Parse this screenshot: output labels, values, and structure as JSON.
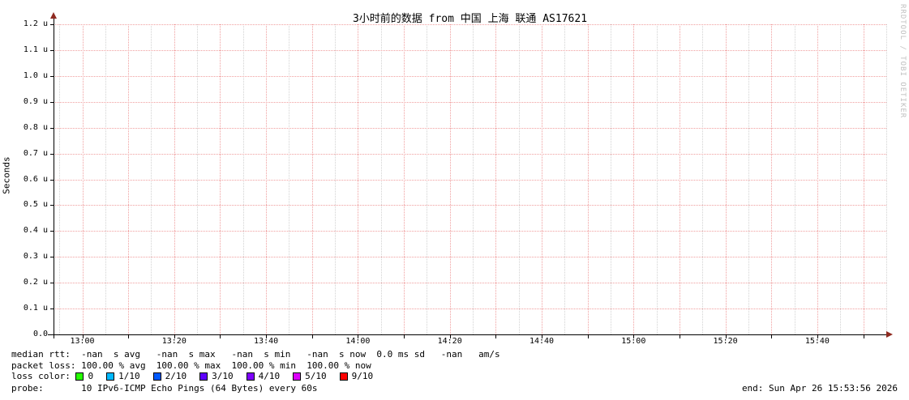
{
  "title": "3小时前的数据 from 中国 上海 联通 AS17621",
  "watermark": "RRDTOOL / TOBI OETIKER",
  "y_axis": {
    "label": "Seconds",
    "ticks": [
      "0.0",
      "0.1 u",
      "0.2 u",
      "0.3 u",
      "0.4 u",
      "0.5 u",
      "0.6 u",
      "0.7 u",
      "0.8 u",
      "0.9 u",
      "1.0 u",
      "1.1 u",
      "1.2 u"
    ]
  },
  "x_axis": {
    "ticks": [
      "13:00",
      "13:20",
      "13:40",
      "14:00",
      "14:20",
      "14:40",
      "15:00",
      "15:20",
      "15:40"
    ]
  },
  "chart_data": {
    "type": "line",
    "title": "3小时前的数据 from 中国 上海 联通 AS17621",
    "xlabel": "",
    "ylabel": "Seconds",
    "x_ticks": [
      "13:00",
      "13:20",
      "13:40",
      "14:00",
      "14:20",
      "14:40",
      "15:00",
      "15:20",
      "15:40"
    ],
    "y_ticks": [
      "0.0",
      "0.1 u",
      "0.2 u",
      "0.3 u",
      "0.4 u",
      "0.5 u",
      "0.6 u",
      "0.7 u",
      "0.8 u",
      "0.9 u",
      "1.0 u",
      "1.1 u",
      "1.2 u"
    ],
    "ylim": [
      0,
      1.2e-06
    ],
    "grid": true,
    "legend_position": "bottom",
    "series": [],
    "stats": {
      "median_rtt": {
        "avg": "-nan s",
        "max": "-nan s",
        "min": "-nan s",
        "now": "-nan s",
        "sd": "0.0 ms",
        "am_s": "-nan"
      },
      "packet_loss": {
        "avg": "100.00 %",
        "max": "100.00 %",
        "min": "100.00 %",
        "now": "100.00 %"
      }
    }
  },
  "legend": {
    "line1": "median rtt:  -nan  s avg   -nan  s max   -nan  s min   -nan  s now  0.0 ms sd   -nan   am/s",
    "line2": "packet loss: 100.00 % avg  100.00 % max  100.00 % min  100.00 % now",
    "loss_color_label": "loss color: ",
    "loss_colors": [
      {
        "label": "0",
        "color": "#26ff00"
      },
      {
        "label": "1/10",
        "color": "#00b8ff"
      },
      {
        "label": "2/10",
        "color": "#0059ff"
      },
      {
        "label": "3/10",
        "color": "#5e00ff"
      },
      {
        "label": "4/10",
        "color": "#7e00ff"
      },
      {
        "label": "5/10",
        "color": "#dd00ff"
      },
      {
        "label": "9/10",
        "color": "#ff0000"
      }
    ],
    "probe_line": "probe:       10 IPv6-ICMP Echo Pings (64 Bytes) every 60s",
    "end_time": "end: Sun Apr 26 15:53:56 2026"
  },
  "colors": {
    "major_grid": "#f09f9f",
    "minor_grid": "#d2d2d2",
    "axis": "#000000",
    "arrow": "#8f2a20",
    "watermark": "#c0c0c0"
  }
}
